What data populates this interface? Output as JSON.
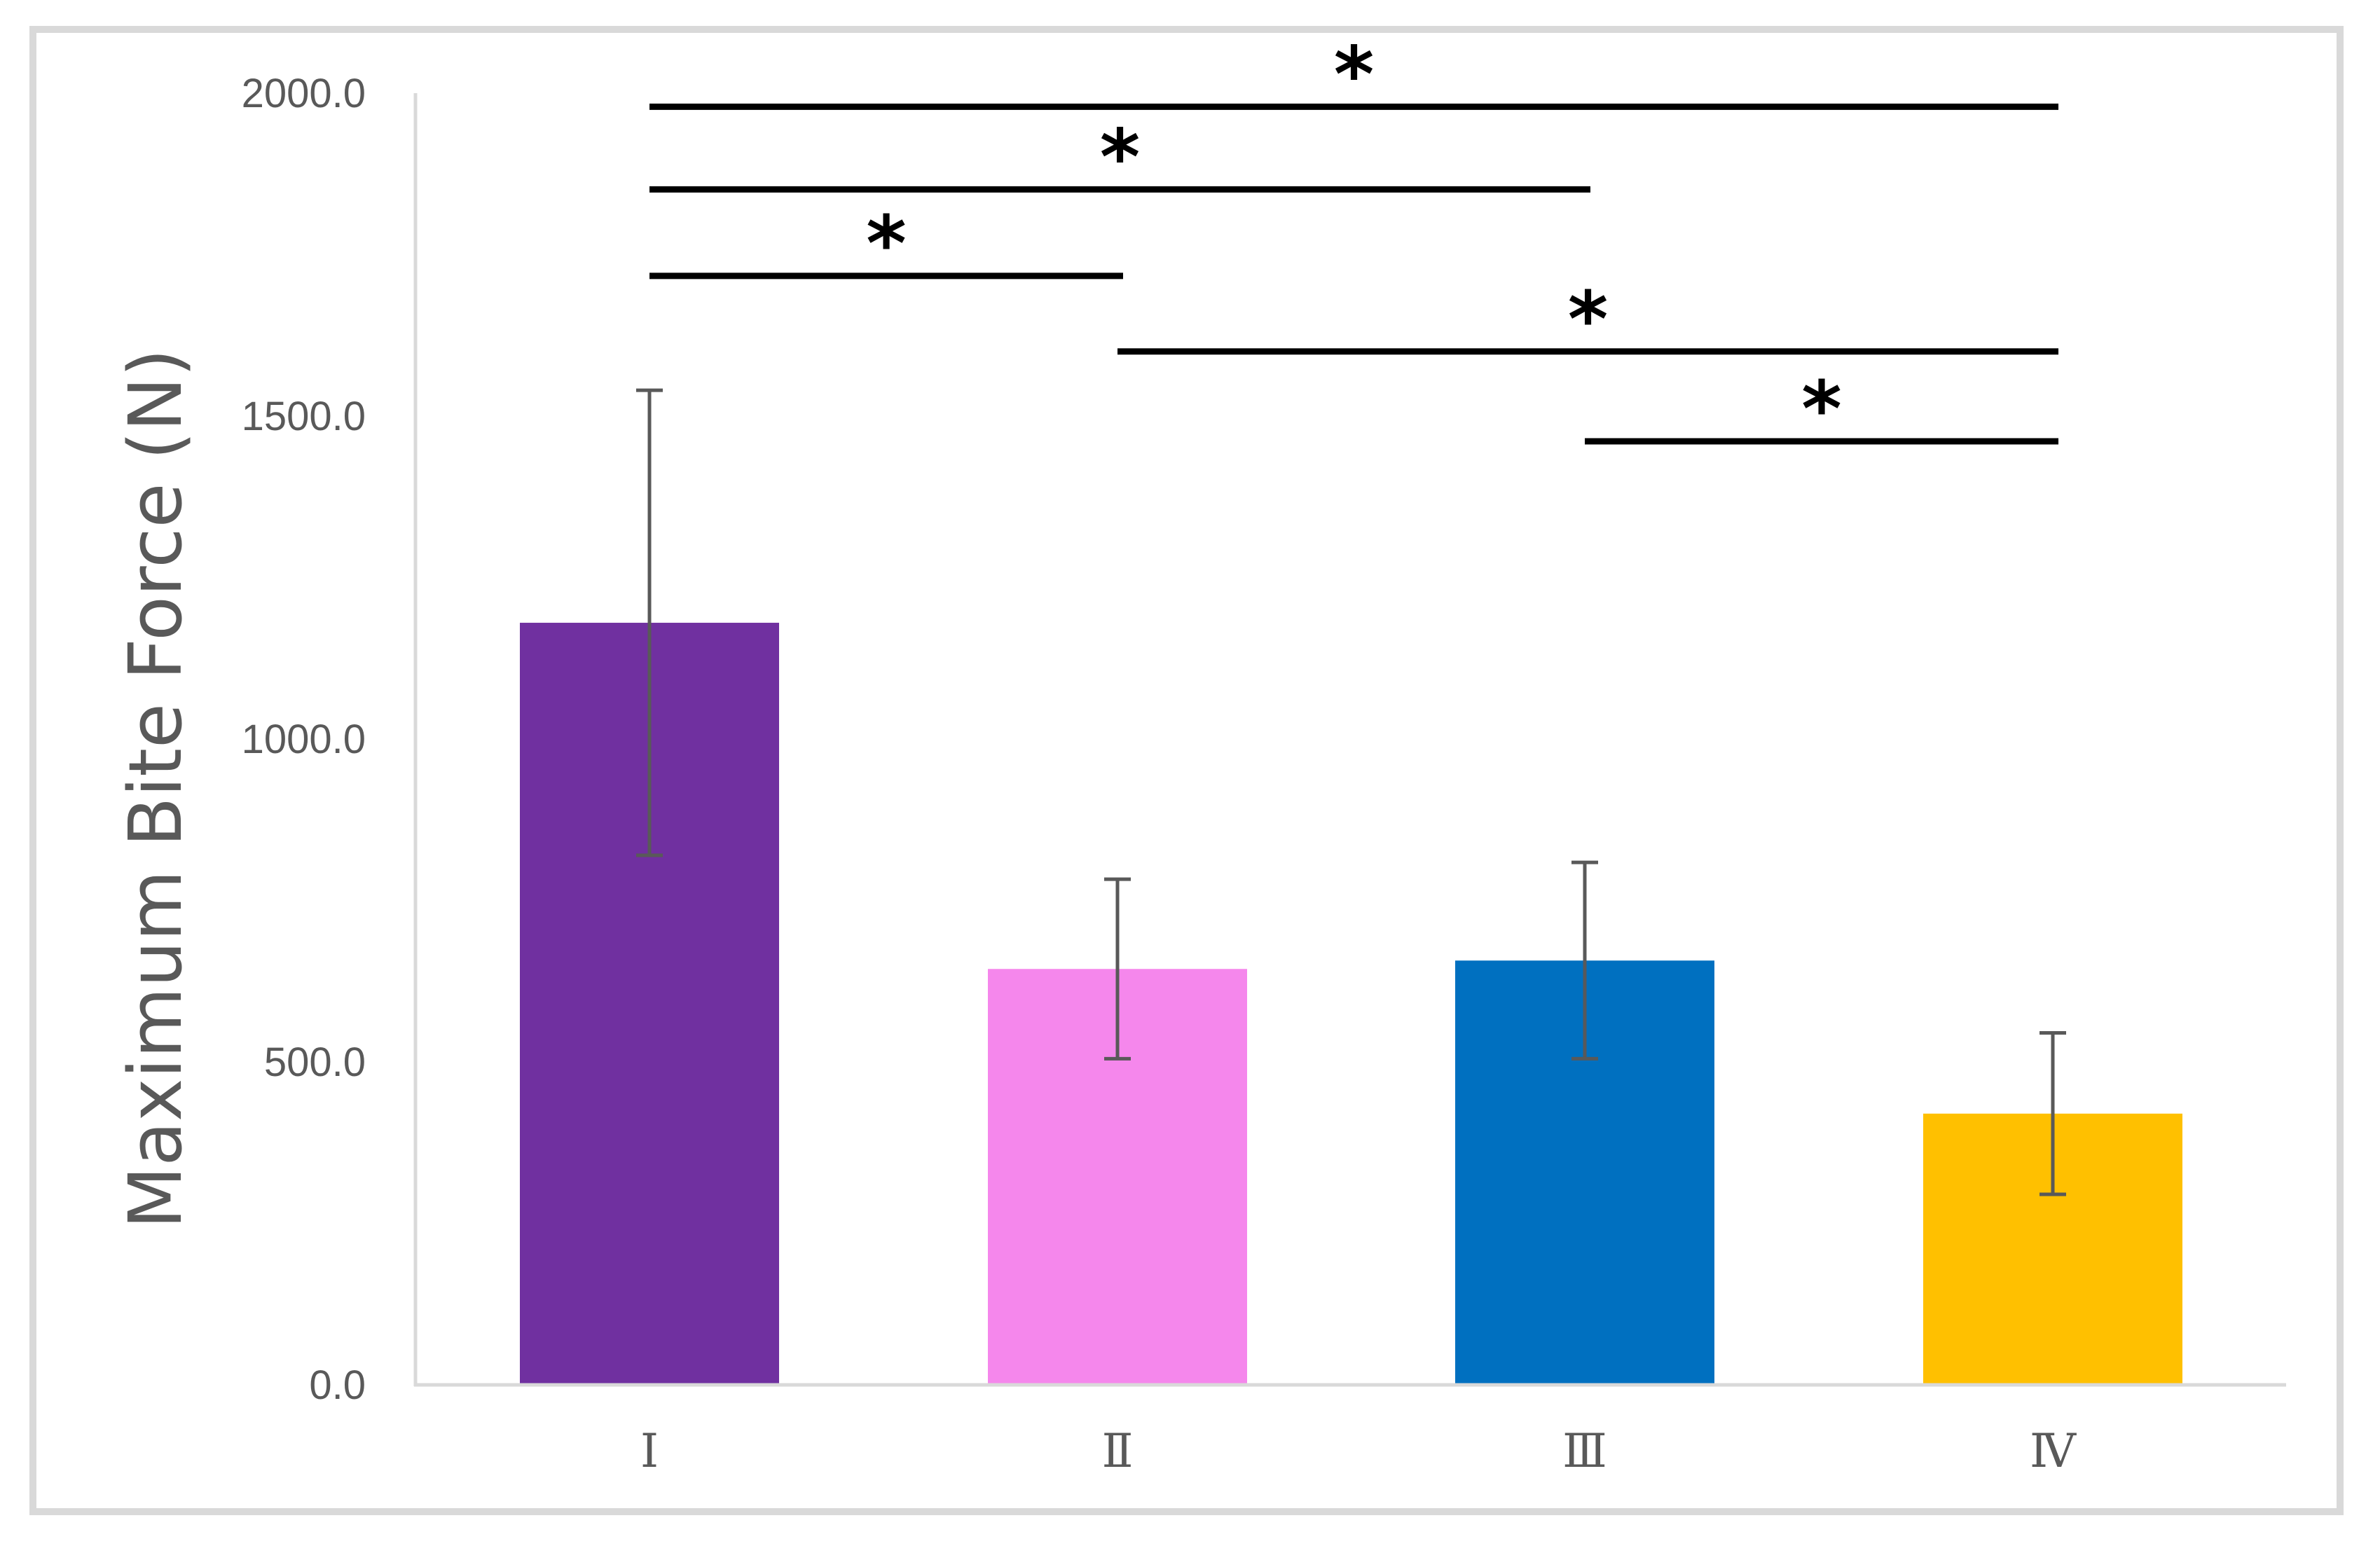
{
  "chart_data": {
    "type": "bar",
    "title": "",
    "xlabel": "",
    "ylabel": "Maximum Bite Force (N)",
    "ylim": [
      0,
      2000
    ],
    "yticks": [
      0,
      500,
      1000,
      1500,
      2000
    ],
    "ytick_labels": [
      "0.0",
      "500.0",
      "1000.0",
      "1500.0",
      "2000.0"
    ],
    "grid": false,
    "legend": null,
    "categories": [
      "Ⅰ",
      "Ⅱ",
      "Ⅲ",
      "Ⅳ"
    ],
    "values": [
      1180,
      644,
      657,
      420
    ],
    "error": [
      360,
      139,
      152,
      125
    ],
    "colors": [
      "#7030a0",
      "#f587ec",
      "#0070c0",
      "#ffc000"
    ],
    "significance": [
      {
        "from": 0,
        "to": 3,
        "y": 1979,
        "label": "*"
      },
      {
        "from": 0,
        "to": 2,
        "y": 1851,
        "label": "*"
      },
      {
        "from": 0,
        "to": 1,
        "y": 1717,
        "label": "*"
      },
      {
        "from": 1,
        "to": 3,
        "y": 1600,
        "label": "*"
      },
      {
        "from": 2,
        "to": 3,
        "y": 1461,
        "label": "*"
      }
    ]
  },
  "style": {
    "axis_color": "#d9d9d9",
    "text_color": "#595959",
    "error_bar_color": "#595959",
    "significance_color": "#000000"
  }
}
